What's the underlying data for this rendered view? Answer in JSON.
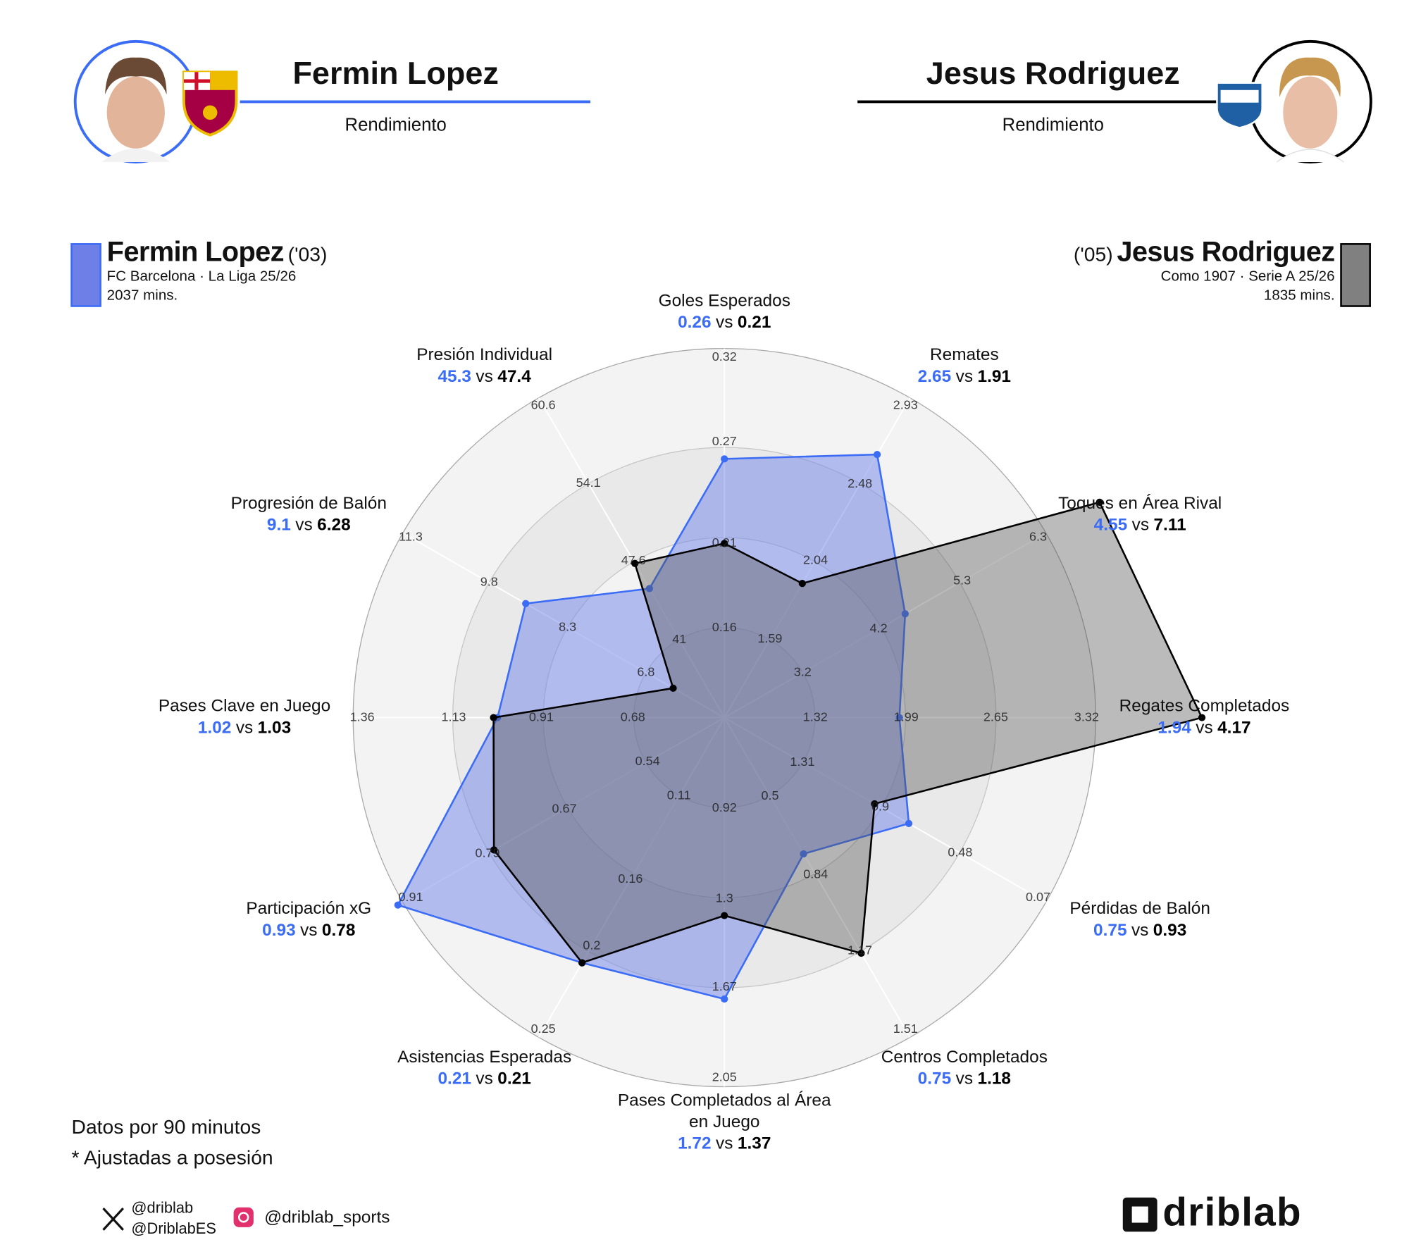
{
  "chart_data": {
    "type": "radar",
    "subtitle": "Rendimiento",
    "vs_label": "vs",
    "axes": [
      {
        "label": "Goles Esperados",
        "lim": [
          0.107,
          0.32
        ],
        "ticks": [
          0.16,
          0.21,
          0.27,
          0.32
        ]
      },
      {
        "label": "Remates",
        "lim": [
          1.14,
          2.93
        ],
        "ticks": [
          1.59,
          2.04,
          2.48,
          2.93
        ]
      },
      {
        "label": "Toques en Área Rival",
        "lim": [
          2.17,
          6.3
        ],
        "ticks": [
          3.2,
          4.2,
          5.3,
          6.3
        ]
      },
      {
        "label": "Regates Completados",
        "lim": [
          0.65,
          3.32
        ],
        "ticks": [
          1.32,
          1.99,
          2.65,
          3.32
        ]
      },
      {
        "label": "Pérdidas de Balón",
        "lim": [
          1.72,
          0.07
        ],
        "ticks": [
          1.31,
          0.9,
          0.48,
          0.07
        ]
      },
      {
        "label": "Centros Completados",
        "lim": [
          0.16,
          1.51
        ],
        "ticks": [
          0.5,
          0.84,
          1.17,
          1.51
        ]
      },
      {
        "label": "Pases Completados al Área en Juego",
        "lim": [
          0.54,
          2.05
        ],
        "ticks": [
          0.92,
          1.3,
          1.67,
          2.05
        ]
      },
      {
        "label": "Asistencias Esperadas",
        "lim": [
          0.063,
          0.25
        ],
        "ticks": [
          0.11,
          0.16,
          0.2,
          0.25
        ]
      },
      {
        "label": "Participación xG",
        "lim": [
          0.42,
          0.91
        ],
        "ticks": [
          0.54,
          0.67,
          0.79,
          0.91
        ]
      },
      {
        "label": "Pases Clave en Juego",
        "lim": [
          0.45,
          1.36
        ],
        "ticks": [
          0.68,
          0.91,
          1.13,
          1.36
        ]
      },
      {
        "label": "Progresión de Balón",
        "lim": [
          5.3,
          11.3
        ],
        "ticks": [
          6.8,
          8.3,
          9.8,
          11.3
        ]
      },
      {
        "label": "Presión Individual",
        "lim": [
          34.5,
          60.6
        ],
        "ticks": [
          41,
          47.6,
          54.1,
          60.6
        ]
      }
    ],
    "series": [
      {
        "name": "Fermin Lopez",
        "birth": "('03)",
        "team": "FC Barcelona · La Liga 25/26",
        "minutes": "2037 mins.",
        "color": "#3b6cf6",
        "fill": "#6f83e8",
        "values": [
          0.26,
          2.65,
          4.55,
          1.94,
          0.75,
          0.75,
          1.72,
          0.21,
          0.93,
          1.02,
          9.1,
          45.3
        ]
      },
      {
        "name": "Jesus Rodriguez",
        "birth": "('05)",
        "team": "Como 1907 · Serie A 25/26",
        "minutes": "1835 mins.",
        "color": "#000000",
        "fill": "#555555",
        "values": [
          0.21,
          1.91,
          7.11,
          4.17,
          0.93,
          1.18,
          1.37,
          0.21,
          0.78,
          1.03,
          6.28,
          47.4
        ]
      }
    ]
  },
  "footer": {
    "note1": "Datos por 90 minutos",
    "note2": "* Ajustadas a posesión",
    "x_handle1": "@driblab",
    "x_handle2": "@DriblabES",
    "instagram": "@driblab_sports",
    "brand": "driblab"
  }
}
